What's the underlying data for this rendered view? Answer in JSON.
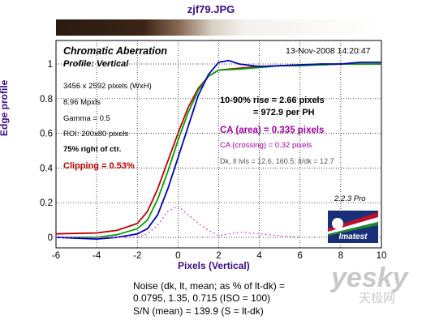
{
  "file_title": "zjf79.JPG",
  "chart_data": {
    "type": "line",
    "title": "Chromatic Aberration",
    "subtitle": "Profile: Vertical",
    "timestamp": "13-Nov-2008 14:20:47",
    "xlabel": "Pixels (Vertical)",
    "ylabel": "Edge profile",
    "xlim": [
      -6,
      10
    ],
    "ylim": [
      0,
      1
    ],
    "x_ticks": [
      "-6",
      "-4",
      "-2",
      "0",
      "2",
      "4",
      "6",
      "8",
      "10"
    ],
    "y_ticks": [
      "0",
      "0.2",
      "0.4",
      "0.6",
      "0.8",
      "1"
    ],
    "grid": true,
    "series": [
      {
        "color": "#c00000",
        "x": [
          -6,
          -4,
          -3,
          -2,
          -1.5,
          -1,
          -0.5,
          0,
          0.5,
          1,
          1.5,
          2,
          3,
          4,
          5,
          6,
          7,
          8,
          9,
          10
        ],
        "y": [
          0.02,
          0.025,
          0.04,
          0.08,
          0.15,
          0.28,
          0.44,
          0.6,
          0.75,
          0.86,
          0.93,
          0.965,
          0.975,
          0.985,
          0.99,
          0.995,
          0.995,
          1.0,
          1.0,
          1.0
        ]
      },
      {
        "color": "#00a000",
        "x": [
          -6,
          -4,
          -3,
          -2,
          -1.5,
          -1,
          -0.5,
          0,
          0.5,
          1,
          1.5,
          2,
          3,
          4,
          5,
          6,
          7,
          8,
          9,
          10
        ],
        "y": [
          0.0,
          0.0,
          0.015,
          0.05,
          0.1,
          0.22,
          0.38,
          0.56,
          0.72,
          0.85,
          0.93,
          0.965,
          0.97,
          0.98,
          0.99,
          0.99,
          0.995,
          1.0,
          1.0,
          1.0
        ]
      },
      {
        "color": "#0000c0",
        "x": [
          -6,
          -4,
          -3,
          -2,
          -1.5,
          -1,
          -0.5,
          0,
          0.5,
          1,
          1.5,
          2,
          2.5,
          3,
          4,
          5,
          6,
          7,
          8,
          9,
          10
        ],
        "y": [
          0.0,
          -0.01,
          0.0,
          0.02,
          0.05,
          0.13,
          0.28,
          0.46,
          0.64,
          0.82,
          0.94,
          1.01,
          1.02,
          1.0,
          0.985,
          0.99,
          0.995,
          1.0,
          1.0,
          1.01,
          1.01
        ]
      },
      {
        "color": "#e040e0",
        "dashed": true,
        "x": [
          -6,
          -2,
          -1.5,
          -1,
          -0.5,
          0,
          0.5,
          1,
          1.5,
          2,
          3,
          4,
          5,
          6
        ],
        "y": [
          0.0,
          0.0,
          0.02,
          0.07,
          0.15,
          0.18,
          0.13,
          0.08,
          0.04,
          0.01,
          0.03,
          0.02,
          0.01,
          0.0
        ]
      }
    ]
  },
  "info": {
    "pixels": "3456 x 2592 pixels (WxH)",
    "mpxls": "8.96 Mpxls",
    "gamma": "Gamma = 0.5",
    "roi": "ROI: 200x80 pixels",
    "position": "75% right of ctr.",
    "clipping": "Clipping =   0.53%"
  },
  "results": {
    "rise_line1": "10-90% rise = 2.66 pixels",
    "rise_line2": "= 972.9 per PH",
    "ca_area": "CA (area) = 0.335 pixels",
    "ca_crossing": "CA (crossing) = 0.32 pixels",
    "dk_levels": "Dk, lt lvls = 12.6, 160.5;   lt/dk = 12.7"
  },
  "version": "2.2.3  Pro",
  "logo_text": "Imatest",
  "noise": {
    "line1": "Noise (dk, lt, mean; as % of lt-dk) =",
    "line2": "0.0795,  1.35,  0.715  (ISO =  100)",
    "line3": "S/N (mean) = 139.9  (S = lt-dk)"
  },
  "watermark": {
    "text": "yesky",
    "subtext": "天极网"
  },
  "colors": {
    "title": "#3d0a8a",
    "red": "#c00000",
    "green": "#00a000",
    "blue": "#0000c0",
    "magenta": "#e040e0"
  }
}
